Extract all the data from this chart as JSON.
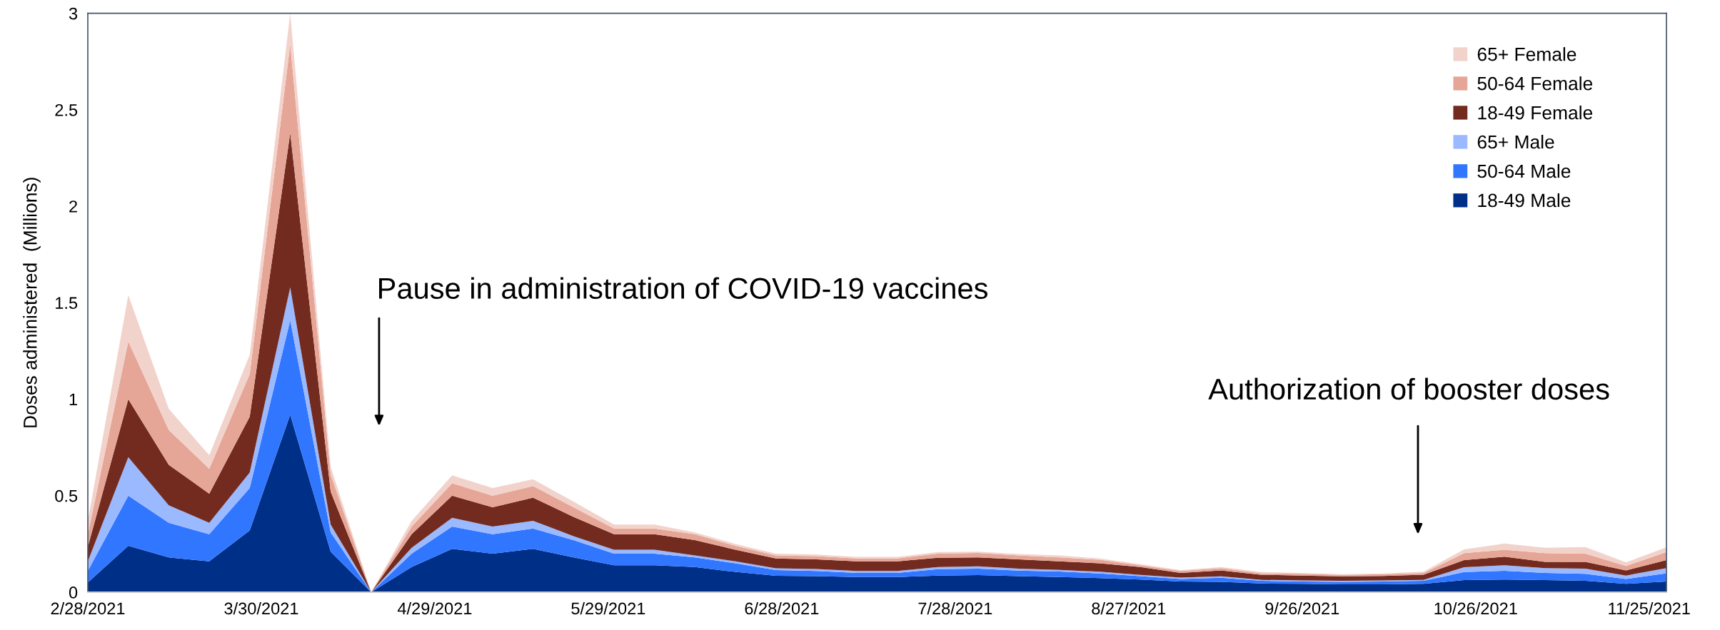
{
  "chart_data": {
    "type": "area",
    "stacked": true,
    "ylabel": "Doses administered  (Millions)",
    "x": [
      "2021-02-28",
      "2021-03-07",
      "2021-03-14",
      "2021-03-21",
      "2021-03-28",
      "2021-04-04",
      "2021-04-11",
      "2021-04-18",
      "2021-04-25",
      "2021-05-02",
      "2021-05-09",
      "2021-05-16",
      "2021-05-23",
      "2021-05-30",
      "2021-06-06",
      "2021-06-13",
      "2021-06-20",
      "2021-06-27",
      "2021-07-04",
      "2021-07-11",
      "2021-07-18",
      "2021-07-25",
      "2021-08-01",
      "2021-08-08",
      "2021-08-15",
      "2021-08-22",
      "2021-08-29",
      "2021-09-05",
      "2021-09-12",
      "2021-09-19",
      "2021-09-26",
      "2021-10-03",
      "2021-10-10",
      "2021-10-17",
      "2021-10-24",
      "2021-10-31",
      "2021-11-07",
      "2021-11-14",
      "2021-11-21",
      "2021-11-28"
    ],
    "xlim": [
      "2021-02-28",
      "2021-11-28"
    ],
    "xticks": [
      {
        "value": "2021-02-28",
        "label": "2/28/2021"
      },
      {
        "value": "2021-03-30",
        "label": "3/30/2021"
      },
      {
        "value": "2021-04-29",
        "label": "4/29/2021"
      },
      {
        "value": "2021-05-29",
        "label": "5/29/2021"
      },
      {
        "value": "2021-06-28",
        "label": "6/28/2021"
      },
      {
        "value": "2021-07-28",
        "label": "7/28/2021"
      },
      {
        "value": "2021-08-27",
        "label": "8/27/2021"
      },
      {
        "value": "2021-09-26",
        "label": "9/26/2021"
      },
      {
        "value": "2021-10-26",
        "label": "10/26/2021"
      },
      {
        "value": "2021-11-25",
        "label": "11/25/2021"
      }
    ],
    "ylim": [
      0,
      3
    ],
    "yticks": [
      0,
      0.5,
      1,
      1.5,
      2,
      2.5,
      3
    ],
    "legend": "top right",
    "series": [
      {
        "name": "18-49 Male",
        "color": "#002f87",
        "values": [
          0.05,
          0.24,
          0.18,
          0.16,
          0.32,
          0.92,
          0.21,
          0,
          0.13,
          0.225,
          0.2,
          0.225,
          0.18,
          0.14,
          0.14,
          0.13,
          0.105,
          0.085,
          0.083,
          0.079,
          0.079,
          0.086,
          0.089,
          0.083,
          0.079,
          0.073,
          0.066,
          0.055,
          0.054,
          0.045,
          0.043,
          0.041,
          0.041,
          0.043,
          0.063,
          0.066,
          0.063,
          0.059,
          0.043,
          0.055
        ]
      },
      {
        "name": "50-64 Male",
        "color": "#3176ff",
        "values": [
          0.06,
          0.26,
          0.18,
          0.14,
          0.22,
          0.49,
          0.1,
          0,
          0.07,
          0.115,
          0.1,
          0.105,
          0.09,
          0.06,
          0.06,
          0.05,
          0.045,
          0.03,
          0.027,
          0.021,
          0.021,
          0.033,
          0.033,
          0.029,
          0.028,
          0.024,
          0.017,
          0.013,
          0.021,
          0.014,
          0.012,
          0.013,
          0.014,
          0.016,
          0.041,
          0.045,
          0.037,
          0.036,
          0.025,
          0.043
        ]
      },
      {
        "name": "65+ Male",
        "color": "#9ab9ff",
        "values": [
          0.05,
          0.2,
          0.09,
          0.06,
          0.08,
          0.17,
          0.04,
          0,
          0.03,
          0.045,
          0.04,
          0.04,
          0.02,
          0.02,
          0.02,
          0.01,
          0.01,
          0.009,
          0.01,
          0.01,
          0.01,
          0.011,
          0.012,
          0.01,
          0.009,
          0.009,
          0.007,
          0.008,
          0.007,
          0.005,
          0.006,
          0.005,
          0.006,
          0.005,
          0.025,
          0.029,
          0.025,
          0.027,
          0.018,
          0.027
        ]
      },
      {
        "name": "18-49 Female",
        "color": "#732b1f",
        "values": [
          0.075,
          0.3,
          0.21,
          0.15,
          0.29,
          0.8,
          0.17,
          0,
          0.07,
          0.115,
          0.1,
          0.12,
          0.1,
          0.08,
          0.08,
          0.08,
          0.06,
          0.051,
          0.05,
          0.05,
          0.05,
          0.048,
          0.046,
          0.048,
          0.044,
          0.044,
          0.04,
          0.024,
          0.031,
          0.026,
          0.025,
          0.023,
          0.023,
          0.027,
          0.037,
          0.044,
          0.032,
          0.035,
          0.027,
          0.041
        ]
      },
      {
        "name": "50-64 Female",
        "color": "#e6a697",
        "values": [
          0.065,
          0.3,
          0.18,
          0.13,
          0.22,
          0.46,
          0.09,
          0,
          0.04,
          0.065,
          0.06,
          0.06,
          0.05,
          0.03,
          0.03,
          0.03,
          0.02,
          0.015,
          0.017,
          0.015,
          0.015,
          0.022,
          0.023,
          0.02,
          0.02,
          0.018,
          0.01,
          0.01,
          0.012,
          0.008,
          0.009,
          0.008,
          0.009,
          0.009,
          0.036,
          0.036,
          0.045,
          0.043,
          0.023,
          0.042
        ]
      },
      {
        "name": "65+ Female",
        "color": "#f2d3cb",
        "values": [
          0.07,
          0.24,
          0.11,
          0.07,
          0.1,
          0.16,
          0.04,
          0,
          0.03,
          0.04,
          0.04,
          0.035,
          0.03,
          0.02,
          0.02,
          0.01,
          0.01,
          0.01,
          0.008,
          0.008,
          0.008,
          0.008,
          0.007,
          0.008,
          0.01,
          0.007,
          0.005,
          0.005,
          0.005,
          0.006,
          0.005,
          0.003,
          0.004,
          0.006,
          0.02,
          0.032,
          0.028,
          0.034,
          0.018,
          0.025
        ]
      }
    ],
    "annotations": [
      "Pause in administration of COVID-19 vaccines",
      "Authorization of booster doses"
    ]
  }
}
